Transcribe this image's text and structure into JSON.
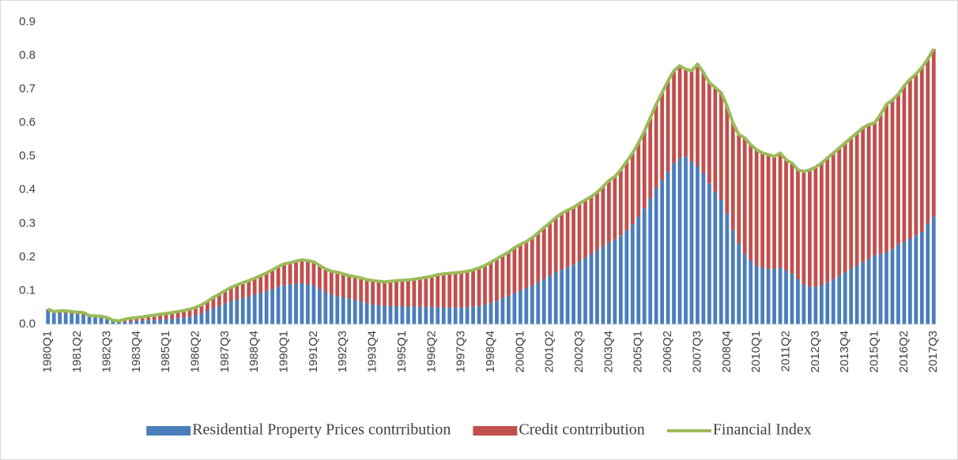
{
  "chart_data": {
    "type": "bar",
    "stacked": true,
    "categories": [
      "1980Q1",
      null,
      null,
      null,
      null,
      "1981Q2",
      null,
      null,
      null,
      null,
      "1982Q3",
      null,
      null,
      null,
      null,
      "1983Q4",
      null,
      null,
      null,
      null,
      "1985Q1",
      null,
      null,
      null,
      null,
      "1986Q2",
      null,
      null,
      null,
      null,
      "1987Q3",
      null,
      null,
      null,
      null,
      "1988Q4",
      null,
      null,
      null,
      null,
      "1990Q1",
      null,
      null,
      null,
      null,
      "1991Q2",
      null,
      null,
      null,
      null,
      "1992Q3",
      null,
      null,
      null,
      null,
      "1993Q4",
      null,
      null,
      null,
      null,
      "1995Q1",
      null,
      null,
      null,
      null,
      "1996Q2",
      null,
      null,
      null,
      null,
      "1997Q3",
      null,
      null,
      null,
      null,
      "1998Q4",
      null,
      null,
      null,
      null,
      "2000Q1",
      null,
      null,
      null,
      null,
      "2001Q2",
      null,
      null,
      null,
      null,
      "2002Q3",
      null,
      null,
      null,
      null,
      "2003Q4",
      null,
      null,
      null,
      null,
      "2005Q1",
      null,
      null,
      null,
      null,
      "2006Q2",
      null,
      null,
      null,
      null,
      "2007Q3",
      null,
      null,
      null,
      null,
      "2008Q4",
      null,
      null,
      null,
      null,
      "2010Q1",
      null,
      null,
      null,
      null,
      "2011Q2",
      null,
      null,
      null,
      null,
      "2012Q3",
      null,
      null,
      null,
      null,
      "2013Q4",
      null,
      null,
      null,
      null,
      "2015Q1",
      null,
      null,
      null,
      null,
      "2016Q2",
      null,
      null,
      null,
      null,
      "2017Q3"
    ],
    "series": [
      {
        "name": "Residential Property Prices contrribution",
        "color": "#4a7ebb",
        "values": [
          0.04,
          0.035,
          0.034,
          0.033,
          0.032,
          0.03,
          0.028,
          0.024,
          0.022,
          0.02,
          0.016,
          0.01,
          0.006,
          0.008,
          0.009,
          0.01,
          0.011,
          0.012,
          0.013,
          0.014,
          0.015,
          0.016,
          0.018,
          0.02,
          0.022,
          0.026,
          0.032,
          0.04,
          0.048,
          0.055,
          0.062,
          0.068,
          0.073,
          0.078,
          0.083,
          0.088,
          0.093,
          0.098,
          0.105,
          0.112,
          0.117,
          0.119,
          0.121,
          0.122,
          0.12,
          0.115,
          0.105,
          0.095,
          0.088,
          0.084,
          0.08,
          0.076,
          0.072,
          0.068,
          0.063,
          0.059,
          0.057,
          0.055,
          0.054,
          0.054,
          0.054,
          0.053,
          0.053,
          0.052,
          0.052,
          0.051,
          0.051,
          0.05,
          0.05,
          0.05,
          0.05,
          0.051,
          0.052,
          0.055,
          0.058,
          0.063,
          0.07,
          0.078,
          0.085,
          0.093,
          0.1,
          0.107,
          0.115,
          0.125,
          0.135,
          0.145,
          0.155,
          0.163,
          0.17,
          0.178,
          0.188,
          0.198,
          0.208,
          0.22,
          0.232,
          0.243,
          0.252,
          0.265,
          0.28,
          0.298,
          0.32,
          0.345,
          0.375,
          0.405,
          0.43,
          0.455,
          0.48,
          0.495,
          0.5,
          0.485,
          0.47,
          0.45,
          0.42,
          0.395,
          0.37,
          0.33,
          0.28,
          0.24,
          0.21,
          0.19,
          0.175,
          0.168,
          0.165,
          0.165,
          0.168,
          0.16,
          0.15,
          0.135,
          0.12,
          0.112,
          0.112,
          0.115,
          0.125,
          0.135,
          0.145,
          0.155,
          0.165,
          0.175,
          0.185,
          0.195,
          0.205,
          0.21,
          0.215,
          0.225,
          0.238,
          0.245,
          0.255,
          0.265,
          0.275,
          0.3,
          0.32
        ]
      },
      {
        "name": "Credit contrribution",
        "color": "#c0504d",
        "values": [
          0.005,
          0.003,
          0.006,
          0.007,
          0.006,
          0.006,
          0.007,
          0.002,
          0.003,
          0.004,
          0.004,
          0.002,
          0.004,
          0.007,
          0.009,
          0.01,
          0.011,
          0.013,
          0.014,
          0.016,
          0.017,
          0.019,
          0.02,
          0.021,
          0.023,
          0.024,
          0.026,
          0.028,
          0.032,
          0.035,
          0.038,
          0.042,
          0.044,
          0.046,
          0.047,
          0.049,
          0.052,
          0.055,
          0.057,
          0.06,
          0.063,
          0.064,
          0.067,
          0.07,
          0.07,
          0.071,
          0.07,
          0.07,
          0.07,
          0.071,
          0.07,
          0.069,
          0.07,
          0.07,
          0.07,
          0.071,
          0.071,
          0.071,
          0.074,
          0.076,
          0.077,
          0.079,
          0.081,
          0.085,
          0.088,
          0.092,
          0.097,
          0.1,
          0.102,
          0.103,
          0.105,
          0.107,
          0.11,
          0.113,
          0.117,
          0.122,
          0.125,
          0.127,
          0.13,
          0.135,
          0.138,
          0.139,
          0.143,
          0.147,
          0.153,
          0.157,
          0.163,
          0.167,
          0.17,
          0.17,
          0.172,
          0.172,
          0.172,
          0.173,
          0.178,
          0.185,
          0.188,
          0.195,
          0.205,
          0.212,
          0.22,
          0.23,
          0.24,
          0.25,
          0.26,
          0.27,
          0.275,
          0.275,
          0.26,
          0.27,
          0.305,
          0.3,
          0.3,
          0.31,
          0.32,
          0.32,
          0.32,
          0.325,
          0.345,
          0.345,
          0.345,
          0.342,
          0.34,
          0.335,
          0.342,
          0.33,
          0.33,
          0.325,
          0.335,
          0.348,
          0.356,
          0.365,
          0.37,
          0.375,
          0.38,
          0.385,
          0.39,
          0.395,
          0.4,
          0.4,
          0.395,
          0.415,
          0.44,
          0.443,
          0.447,
          0.465,
          0.475,
          0.48,
          0.49,
          0.49,
          0.5
        ]
      },
      {
        "name": "Financial Index",
        "color": "#9bbb59",
        "type": "line",
        "values": [
          0.045,
          0.038,
          0.04,
          0.04,
          0.038,
          0.036,
          0.035,
          0.026,
          0.025,
          0.024,
          0.02,
          0.012,
          0.01,
          0.015,
          0.018,
          0.02,
          0.022,
          0.025,
          0.027,
          0.03,
          0.032,
          0.035,
          0.038,
          0.041,
          0.045,
          0.05,
          0.058,
          0.068,
          0.08,
          0.09,
          0.1,
          0.11,
          0.117,
          0.124,
          0.13,
          0.137,
          0.145,
          0.153,
          0.162,
          0.172,
          0.18,
          0.183,
          0.188,
          0.192,
          0.19,
          0.186,
          0.175,
          0.165,
          0.158,
          0.155,
          0.15,
          0.145,
          0.142,
          0.138,
          0.133,
          0.13,
          0.128,
          0.126,
          0.128,
          0.13,
          0.131,
          0.132,
          0.134,
          0.137,
          0.14,
          0.143,
          0.148,
          0.15,
          0.152,
          0.153,
          0.155,
          0.158,
          0.162,
          0.168,
          0.175,
          0.185,
          0.195,
          0.205,
          0.215,
          0.228,
          0.238,
          0.246,
          0.258,
          0.272,
          0.288,
          0.302,
          0.318,
          0.33,
          0.34,
          0.348,
          0.36,
          0.37,
          0.38,
          0.393,
          0.41,
          0.428,
          0.44,
          0.46,
          0.485,
          0.51,
          0.54,
          0.575,
          0.615,
          0.655,
          0.69,
          0.725,
          0.755,
          0.77,
          0.76,
          0.755,
          0.775,
          0.75,
          0.72,
          0.705,
          0.69,
          0.65,
          0.6,
          0.565,
          0.555,
          0.535,
          0.52,
          0.51,
          0.505,
          0.5,
          0.51,
          0.49,
          0.48,
          0.46,
          0.455,
          0.46,
          0.468,
          0.48,
          0.495,
          0.51,
          0.525,
          0.54,
          0.555,
          0.57,
          0.585,
          0.595,
          0.6,
          0.625,
          0.655,
          0.668,
          0.685,
          0.71,
          0.73,
          0.745,
          0.765,
          0.79,
          0.82
        ]
      }
    ],
    "ylim": [
      0,
      0.9
    ],
    "yticks": [
      {
        "value": 0,
        "label": "0.0"
      },
      0.1,
      0.2,
      0.3,
      0.4,
      0.5,
      0.6,
      0.7,
      0.8,
      0.9
    ],
    "grid": false,
    "legend": "bottom"
  }
}
